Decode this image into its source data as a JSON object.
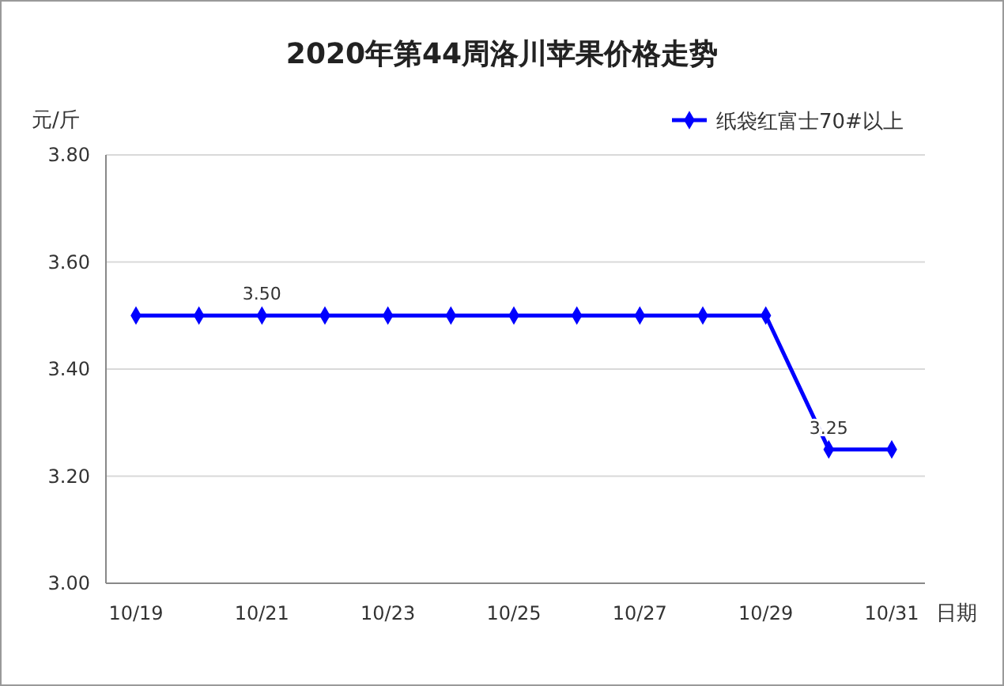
{
  "chart_data": {
    "type": "line",
    "title": "2020年第44周洛川苹果价格走势",
    "ylabel": "元/斤",
    "xlabel": "日期",
    "categories": [
      "10/19",
      null,
      "10/21",
      null,
      "10/23",
      null,
      "10/25",
      null,
      "10/27",
      null,
      "10/29",
      null,
      "10/31"
    ],
    "series": [
      {
        "name": "纸袋红富士70#以上",
        "color": "#0000ff",
        "values": [
          3.5,
          3.5,
          3.5,
          3.5,
          3.5,
          3.5,
          3.5,
          3.5,
          3.5,
          3.5,
          3.5,
          3.25,
          3.25
        ],
        "value_labels": [
          null,
          null,
          "3.50",
          null,
          null,
          null,
          null,
          null,
          null,
          null,
          null,
          "3.25",
          null
        ]
      }
    ],
    "ylim": [
      3.0,
      3.8
    ],
    "yticks": [
      {
        "value": 3.0,
        "label": "3.00"
      },
      {
        "value": 3.2,
        "label": "3.20"
      },
      {
        "value": 3.4,
        "label": "3.40"
      },
      {
        "value": 3.6,
        "label": "3.60"
      },
      {
        "value": 3.8,
        "label": "3.80"
      }
    ],
    "grid": "y",
    "legend": "top right",
    "marker": "diamond",
    "line_style": "solid"
  }
}
